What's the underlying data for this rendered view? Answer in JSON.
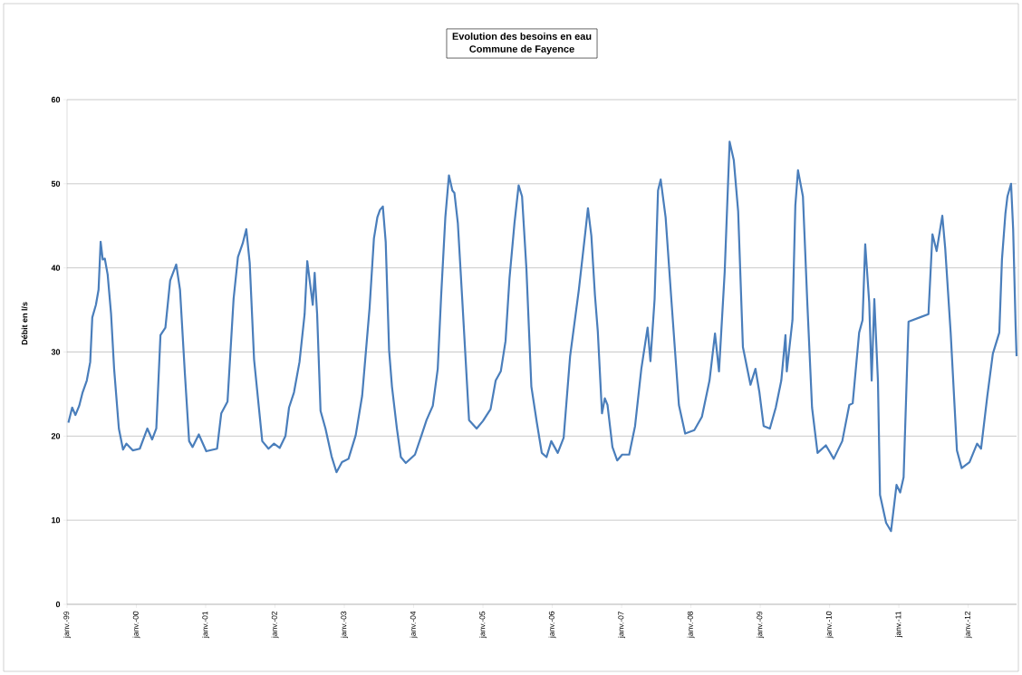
{
  "chart_data": {
    "type": "line",
    "title": "Evolution des besoins en eau",
    "subtitle": "Commune de Fayence",
    "ylabel": "Débit en l/s",
    "x": [
      "1999-01-08",
      "1999-01-28",
      "1999-02-14",
      "1999-03-06",
      "1999-03-24",
      "1999-04-15",
      "1999-05-03",
      "1999-05-14",
      "1999-06-02",
      "1999-06-16",
      "1999-06-27",
      "1999-07-08",
      "1999-07-19",
      "1999-08-03",
      "1999-08-21",
      "1999-09-06",
      "1999-10-01",
      "1999-10-23",
      "1999-11-10",
      "1999-12-13",
      "2000-01-19",
      "2000-02-28",
      "2000-03-24",
      "2000-04-15",
      "2000-05-07",
      "2000-06-02",
      "2000-06-27",
      "2000-07-29",
      "2000-08-18",
      "2000-09-13",
      "2000-10-05",
      "2000-10-23",
      "2000-11-25",
      "2001-01-04",
      "2001-03-02",
      "2001-03-24",
      "2001-04-26",
      "2001-05-28",
      "2001-06-20",
      "2001-07-15",
      "2001-08-03",
      "2001-08-21",
      "2001-09-13",
      "2001-10-26",
      "2001-11-28",
      "2001-12-27",
      "2002-01-26",
      "2002-02-25",
      "2002-03-16",
      "2002-04-11",
      "2002-05-10",
      "2002-06-06",
      "2002-06-20",
      "2002-07-05",
      "2002-07-19",
      "2002-07-29",
      "2002-08-11",
      "2002-08-29",
      "2002-09-24",
      "2002-10-26",
      "2002-11-21",
      "2002-12-20",
      "2003-01-23",
      "2003-03-02",
      "2003-04-05",
      "2003-05-14",
      "2003-06-06",
      "2003-06-24",
      "2003-07-08",
      "2003-07-23",
      "2003-08-07",
      "2003-08-25",
      "2003-09-09",
      "2003-10-05",
      "2003-10-26",
      "2003-11-21",
      "2004-01-08",
      "2004-02-10",
      "2004-03-09",
      "2004-04-11",
      "2004-05-07",
      "2004-05-25",
      "2004-06-16",
      "2004-07-05",
      "2004-07-23",
      "2004-08-03",
      "2004-08-21",
      "2004-09-13",
      "2004-10-19",
      "2004-11-28",
      "2005-01-01",
      "2005-02-10",
      "2005-03-09",
      "2005-04-05",
      "2005-04-30",
      "2005-05-21",
      "2005-06-16",
      "2005-07-08",
      "2005-07-26",
      "2005-08-18",
      "2005-09-13",
      "2005-10-12",
      "2005-11-07",
      "2005-12-02",
      "2005-12-27",
      "2006-01-30",
      "2006-03-02",
      "2006-04-05",
      "2006-05-21",
      "2006-06-24",
      "2006-07-08",
      "2006-07-26",
      "2006-08-14",
      "2006-08-29",
      "2006-09-20",
      "2006-10-05",
      "2006-10-19",
      "2006-11-14",
      "2006-12-09",
      "2007-01-04",
      "2007-02-10",
      "2007-03-13",
      "2007-04-15",
      "2007-05-18",
      "2007-06-02",
      "2007-06-24",
      "2007-07-12",
      "2007-07-26",
      "2007-08-21",
      "2007-09-20",
      "2007-10-30",
      "2007-12-02",
      "2008-01-19",
      "2008-02-28",
      "2008-04-08",
      "2008-05-07",
      "2008-05-28",
      "2008-06-27",
      "2008-07-23",
      "2008-08-14",
      "2008-09-06",
      "2008-10-01",
      "2008-11-10",
      "2008-12-06",
      "2008-12-27",
      "2009-01-19",
      "2009-02-21",
      "2009-03-24",
      "2009-04-22",
      "2009-05-14",
      "2009-05-21",
      "2009-06-20",
      "2009-07-05",
      "2009-07-19",
      "2009-08-14",
      "2009-09-06",
      "2009-10-01",
      "2009-10-30",
      "2009-12-13",
      "2010-01-23",
      "2010-03-09",
      "2010-04-15",
      "2010-05-03",
      "2010-06-06",
      "2010-06-24",
      "2010-07-08",
      "2010-07-29",
      "2010-08-11",
      "2010-08-25",
      "2010-09-13",
      "2010-09-24",
      "2010-10-26",
      "2010-11-21",
      "2010-12-20",
      "2011-01-08",
      "2011-01-26",
      "2011-02-21",
      "2011-06-06",
      "2011-06-27",
      "2011-07-19",
      "2011-08-18",
      "2011-09-02",
      "2011-10-01",
      "2011-11-03",
      "2011-11-28",
      "2012-01-08",
      "2012-02-17",
      "2012-03-09",
      "2012-04-11",
      "2012-05-10",
      "2012-06-13",
      "2012-06-27",
      "2012-07-15",
      "2012-07-26",
      "2012-08-14",
      "2012-08-25",
      "2012-09-07",
      "2012-09-12"
    ],
    "series": [
      {
        "color": "#4a7ebb",
        "values": [
          21.6,
          23.4,
          22.5,
          23.6,
          25.2,
          26.6,
          28.8,
          34.1,
          35.6,
          37.4,
          43.1,
          41.0,
          41.1,
          39.2,
          34.5,
          28.0,
          20.9,
          18.4,
          19.1,
          18.3,
          18.5,
          20.9,
          19.6,
          20.9,
          32.0,
          32.9,
          38.5,
          40.4,
          37.4,
          27.3,
          19.4,
          18.7,
          20.2,
          18.2,
          18.5,
          22.7,
          24.1,
          36.3,
          41.3,
          42.9,
          44.6,
          40.6,
          29.1,
          19.4,
          18.5,
          19.1,
          18.6,
          20.0,
          23.4,
          25.2,
          28.8,
          34.5,
          40.8,
          38.1,
          35.6,
          39.4,
          34.5,
          23.0,
          20.9,
          17.6,
          15.7,
          16.9,
          17.3,
          20.1,
          24.8,
          35.2,
          43.5,
          46.0,
          46.9,
          47.3,
          43.1,
          30.2,
          25.9,
          20.9,
          17.5,
          16.8,
          17.8,
          20.0,
          21.9,
          23.6,
          28.0,
          36.7,
          46.0,
          51.0,
          49.2,
          48.9,
          45.3,
          36.3,
          21.9,
          20.9,
          21.8,
          23.2,
          26.6,
          27.7,
          31.3,
          38.8,
          45.3,
          49.8,
          48.5,
          39.9,
          25.9,
          21.6,
          18.0,
          17.5,
          19.4,
          18.0,
          19.8,
          29.5,
          37.4,
          44.2,
          47.1,
          43.8,
          36.7,
          32.4,
          22.7,
          24.5,
          23.7,
          18.7,
          17.1,
          17.8,
          17.8,
          21.2,
          28.0,
          32.9,
          28.9,
          36.3,
          49.2,
          50.5,
          46.0,
          36.3,
          23.7,
          20.3,
          20.7,
          22.3,
          26.6,
          32.2,
          27.7,
          39.5,
          55.0,
          52.8,
          46.7,
          30.6,
          26.1,
          28.0,
          25.2,
          21.2,
          20.9,
          23.4,
          26.6,
          32.0,
          27.7,
          33.8,
          47.4,
          51.6,
          48.5,
          35.9,
          23.4,
          18.0,
          18.9,
          17.3,
          19.4,
          23.7,
          23.9,
          32.3,
          33.8,
          42.8,
          35.9,
          26.6,
          36.3,
          26.6,
          13.0,
          9.7,
          8.7,
          14.2,
          13.3,
          15.1,
          33.6,
          34.5,
          44.0,
          42.0,
          46.2,
          42.4,
          32.3,
          18.3,
          16.2,
          16.9,
          19.1,
          18.5,
          24.8,
          29.8,
          32.3,
          41.0,
          46.4,
          48.5,
          50.0,
          44.6,
          33.1,
          29.5
        ]
      }
    ],
    "xlim": [
      "1999-01-01",
      "2012-09-12"
    ],
    "xticks": [
      {
        "value": "1999-01-01",
        "label": "janv.-99"
      },
      {
        "value": "2000-01-01",
        "label": "janv.-00"
      },
      {
        "value": "2001-01-01",
        "label": "janv.-01"
      },
      {
        "value": "2002-01-01",
        "label": "janv.-02"
      },
      {
        "value": "2003-01-01",
        "label": "janv.-03"
      },
      {
        "value": "2004-01-01",
        "label": "janv.-04"
      },
      {
        "value": "2005-01-01",
        "label": "janv.-05"
      },
      {
        "value": "2006-01-01",
        "label": "janv.-06"
      },
      {
        "value": "2007-01-01",
        "label": "janv.-07"
      },
      {
        "value": "2008-01-01",
        "label": "janv.-08"
      },
      {
        "value": "2009-01-01",
        "label": "janv.-09"
      },
      {
        "value": "2010-01-01",
        "label": "janv.-10"
      },
      {
        "value": "2011-01-01",
        "label": "janv.-11"
      },
      {
        "value": "2012-01-01",
        "label": "janv.-12"
      }
    ],
    "ylim": [
      0,
      60
    ],
    "yticks": [
      0,
      10,
      20,
      30,
      40,
      50,
      60
    ],
    "grid": "y",
    "legend": false,
    "marker": "none",
    "line_style": "solid"
  }
}
